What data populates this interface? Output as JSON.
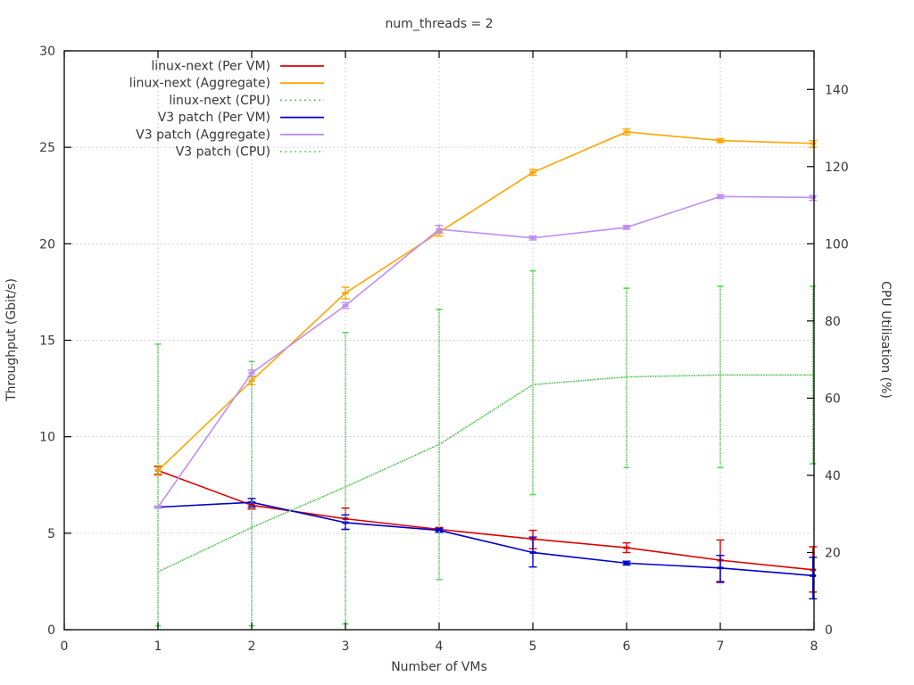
{
  "title": "num_threads = 2",
  "chart_data": {
    "type": "line",
    "title": "num_threads = 2",
    "xlabel": "Number of VMs",
    "ylabel": "Throughput (Gbit/s)",
    "y2label": "CPU Utilisation (%)",
    "xlim": [
      0,
      8
    ],
    "ylim": [
      0,
      30
    ],
    "y2lim": [
      0,
      150
    ],
    "xticks": [
      0,
      1,
      2,
      3,
      4,
      5,
      6,
      7,
      8
    ],
    "yticks": [
      0,
      5,
      10,
      15,
      20,
      25,
      30
    ],
    "y2ticks": [
      0,
      20,
      40,
      60,
      80,
      100,
      120,
      140
    ],
    "grid": true,
    "legend_position": "top-left",
    "x": [
      1,
      2,
      3,
      4,
      5,
      6,
      7,
      8
    ],
    "series": [
      {
        "name": "linux-next (Per VM)",
        "axis": "y",
        "style": "solid",
        "color": "#dd0000",
        "values": [
          8.25,
          6.45,
          5.75,
          5.2,
          4.7,
          4.25,
          3.6,
          3.1
        ],
        "err_lo": [
          8.05,
          6.25,
          5.2,
          5.08,
          4.2,
          4.0,
          2.5,
          1.95
        ],
        "err_hi": [
          8.45,
          6.6,
          6.3,
          5.3,
          5.15,
          4.5,
          4.65,
          4.3
        ]
      },
      {
        "name": "linux-next (Aggregate)",
        "axis": "y",
        "style": "solid",
        "color": "#ffa500",
        "values": [
          8.25,
          12.9,
          17.45,
          20.6,
          23.7,
          25.8,
          25.35,
          25.2
        ],
        "err_lo": [
          8.0,
          12.7,
          17.15,
          20.4,
          23.55,
          25.65,
          25.25,
          25.0
        ],
        "err_hi": [
          8.5,
          13.1,
          17.75,
          20.95,
          23.85,
          25.95,
          25.45,
          25.35
        ]
      },
      {
        "name": "linux-next (CPU)",
        "axis": "y2",
        "style": "dotted",
        "color": "#6aaa6a",
        "values": [
          15,
          26.5,
          37,
          48,
          63.5,
          65.5,
          66,
          66
        ],
        "err_lo": [
          1,
          1,
          1.5,
          13,
          35,
          42,
          42,
          43
        ],
        "err_hi": [
          74,
          69.5,
          77,
          83,
          93,
          88.5,
          89,
          89
        ]
      },
      {
        "name": "V3 patch (Per VM)",
        "axis": "y",
        "style": "solid",
        "color": "#0000cc",
        "values": [
          6.35,
          6.6,
          5.55,
          5.15,
          4.0,
          3.45,
          3.2,
          2.8
        ],
        "err_lo": [
          6.3,
          6.35,
          5.2,
          5.05,
          3.25,
          3.35,
          2.45,
          1.6
        ],
        "err_hi": [
          6.4,
          6.8,
          5.95,
          5.25,
          4.8,
          3.55,
          3.85,
          3.75
        ]
      },
      {
        "name": "V3 patch (Aggregate)",
        "axis": "y",
        "style": "solid",
        "color": "#bf8ff0",
        "values": [
          6.35,
          13.3,
          16.8,
          20.75,
          20.3,
          20.85,
          22.45,
          22.4
        ],
        "err_lo": [
          6.3,
          13.15,
          16.65,
          20.55,
          20.2,
          20.75,
          22.35,
          22.25
        ],
        "err_hi": [
          6.4,
          13.45,
          16.95,
          20.95,
          20.4,
          20.95,
          22.55,
          22.5
        ]
      },
      {
        "name": "V3 patch (CPU)",
        "axis": "y2",
        "style": "dotted",
        "color": "#55dd55",
        "values": [
          15,
          26.5,
          37,
          48,
          63.5,
          65.5,
          66,
          66
        ],
        "err_lo": [
          1,
          1,
          1.5,
          13,
          35,
          42,
          42,
          43
        ],
        "err_hi": [
          74,
          69.5,
          77,
          83,
          93,
          88.5,
          89,
          89
        ]
      }
    ]
  }
}
